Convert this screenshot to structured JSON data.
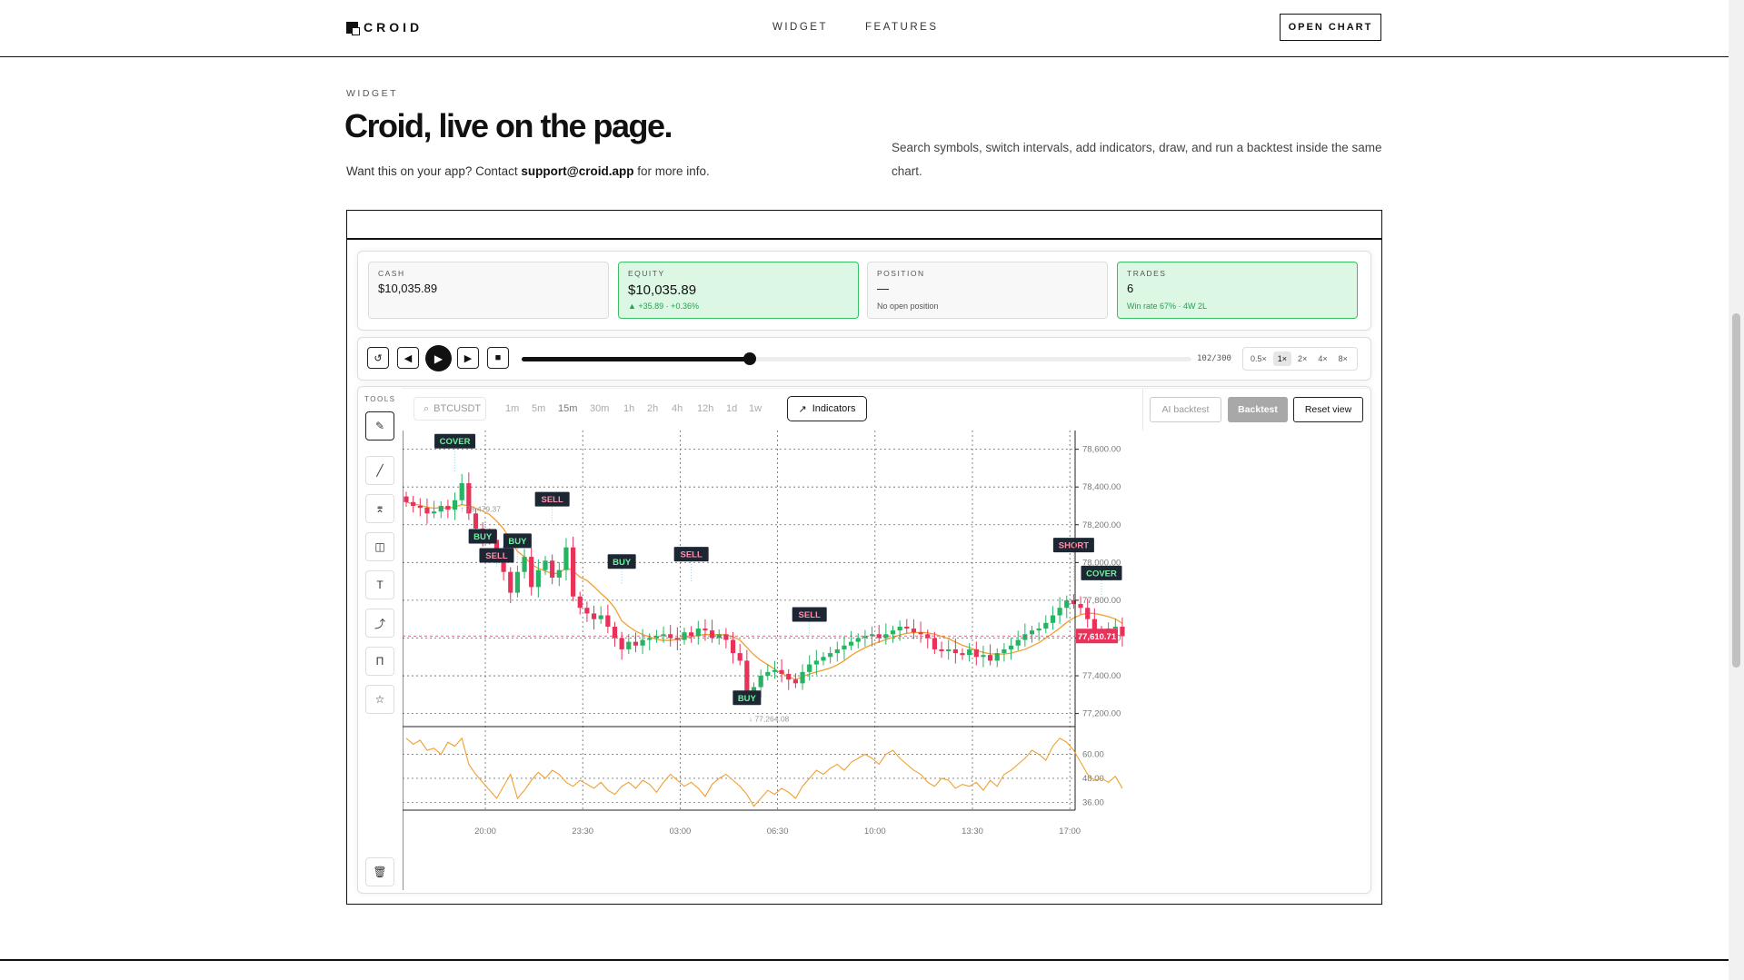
{
  "nav": {
    "brand": "CROID",
    "links": [
      "WIDGET",
      "FEATURES"
    ],
    "cta": "OPEN CHART"
  },
  "header": {
    "eyebrow": "WIDGET",
    "title": "Croid, live on the page.",
    "sub_pre": "Want this on your app? Contact ",
    "sub_email": "support@croid.app",
    "sub_post": " for more info.",
    "description": "Search symbols, switch intervals, add indicators, draw, and run a backtest inside the same chart."
  },
  "stats": {
    "cash": {
      "label": "CASH",
      "value": "$10,035.89"
    },
    "equity": {
      "label": "EQUITY",
      "value": "$10,035.89",
      "note": "▲ +35.89 · +0.36%"
    },
    "position": {
      "label": "POSITION",
      "value": "—",
      "note": "No open position"
    },
    "trades": {
      "label": "TRADES",
      "value": "6",
      "note": "Win rate 67% · 4W 2L"
    }
  },
  "playback": {
    "progress_label": "102/300",
    "progress": 0.34,
    "speeds": [
      "0.5×",
      "1×",
      "2×",
      "4×",
      "8×"
    ],
    "active_speed": "1×"
  },
  "tools": {
    "label": "TOOLS",
    "items": [
      "pencil-icon",
      "line-icon",
      "channel-icon",
      "shapes-icon",
      "text-icon",
      "path-icon",
      "fib-icon",
      "star-icon"
    ],
    "delete": "trash-icon"
  },
  "toolbar": {
    "symbol": "BTCUSDT",
    "intervals": [
      "1m",
      "5m",
      "15m",
      "30m",
      "1h",
      "2h",
      "4h",
      "12h",
      "1d",
      "1w"
    ],
    "active_interval": "15m",
    "indicators": "Indicators",
    "ai_backtest": "AI backtest",
    "backtest": "Backtest",
    "reset": "Reset view"
  },
  "colors": {
    "up": "#26b462",
    "down": "#e8325a",
    "ma": "#f0a030",
    "accent_green": "#37c163"
  },
  "chart_data": {
    "type": "candlestick",
    "symbol": "BTCUSDT",
    "interval": "15m",
    "y_ticks": [
      "78,600.00",
      "78,400.00",
      "78,200.00",
      "78,000.00",
      "77,800.00",
      "77,600.00",
      "77,400.00",
      "77,200.00"
    ],
    "ylim": [
      77150,
      78680
    ],
    "x_ticks": [
      "20:00",
      "23:30",
      "03:00",
      "06:30",
      "10:00",
      "13:30",
      "17:00"
    ],
    "last_price": "77,610.71",
    "high_label": "78,479.37",
    "low_label": "77,264.08",
    "closes": [
      78320,
      78300,
      78290,
      78260,
      78270,
      78300,
      78280,
      78330,
      78420,
      78260,
      78180,
      78140,
      78120,
      78030,
      77950,
      77840,
      77950,
      78030,
      77870,
      77960,
      78010,
      77920,
      77960,
      78080,
      77820,
      77760,
      77730,
      77700,
      77720,
      77660,
      77600,
      77540,
      77580,
      77560,
      77590,
      77600,
      77610,
      77620,
      77600,
      77590,
      77630,
      77610,
      77650,
      77640,
      77600,
      77620,
      77590,
      77520,
      77480,
      77300,
      77340,
      77400,
      77420,
      77430,
      77410,
      77380,
      77360,
      77420,
      77460,
      77480,
      77500,
      77520,
      77540,
      77560,
      77580,
      77600,
      77610,
      77620,
      77600,
      77620,
      77640,
      77660,
      77650,
      77630,
      77620,
      77600,
      77540,
      77530,
      77540,
      77520,
      77510,
      77540,
      77500,
      77510,
      77480,
      77520,
      77540,
      77560,
      77590,
      77620,
      77640,
      77650,
      77680,
      77720,
      77760,
      77800,
      77780,
      77760,
      77700,
      77640,
      77620,
      77650,
      77660,
      77610
    ],
    "trades": [
      {
        "label": "COVER",
        "side": "exit",
        "bar": 7,
        "price": 78479.37
      },
      {
        "label": "BUY",
        "side": "buy",
        "bar": 11,
        "price": 78100
      },
      {
        "label": "SELL",
        "side": "sell",
        "bar": 13,
        "price": 77980
      },
      {
        "label": "BUY",
        "side": "buy",
        "bar": 16,
        "price": 78000
      },
      {
        "label": "SELL",
        "side": "sell",
        "bar": 21,
        "price": 78210
      },
      {
        "label": "BUY",
        "side": "buy",
        "bar": 31,
        "price": 77880
      },
      {
        "label": "SELL",
        "side": "sell",
        "bar": 41,
        "price": 77900
      },
      {
        "label": "BUY",
        "side": "buy",
        "bar": 49,
        "price": 77264.08
      },
      {
        "label": "SELL",
        "side": "sell",
        "bar": 58,
        "price": 77600
      },
      {
        "label": "SHORT",
        "side": "sell",
        "bar": 96,
        "price": 77900
      },
      {
        "label": "COVER",
        "side": "exit",
        "bar": 100,
        "price": 77800
      }
    ],
    "osc_ticks": [
      "60.00",
      "48.00",
      "36.00"
    ],
    "osc_ylim": [
      33,
      72
    ],
    "osc": [
      68,
      65,
      67,
      62,
      63,
      60,
      66,
      64,
      68,
      55,
      50,
      46,
      42,
      38,
      44,
      50,
      38,
      42,
      47,
      51,
      48,
      52,
      50,
      46,
      44,
      47,
      45,
      43,
      46,
      42,
      40,
      44,
      46,
      43,
      47,
      45,
      41,
      46,
      50,
      47,
      44,
      46,
      43,
      39,
      45,
      48,
      50,
      47,
      44,
      40,
      34,
      38,
      42,
      40,
      43,
      41,
      38,
      44,
      48,
      52,
      50,
      53,
      55,
      52,
      56,
      58,
      60,
      58,
      55,
      60,
      62,
      58,
      55,
      52,
      50,
      46,
      44,
      48,
      47,
      43,
      45,
      44,
      46,
      42,
      47,
      44,
      50,
      52,
      55,
      58,
      62,
      60,
      57,
      64,
      68,
      66,
      62,
      56,
      50,
      47,
      48,
      46,
      49,
      43
    ]
  }
}
